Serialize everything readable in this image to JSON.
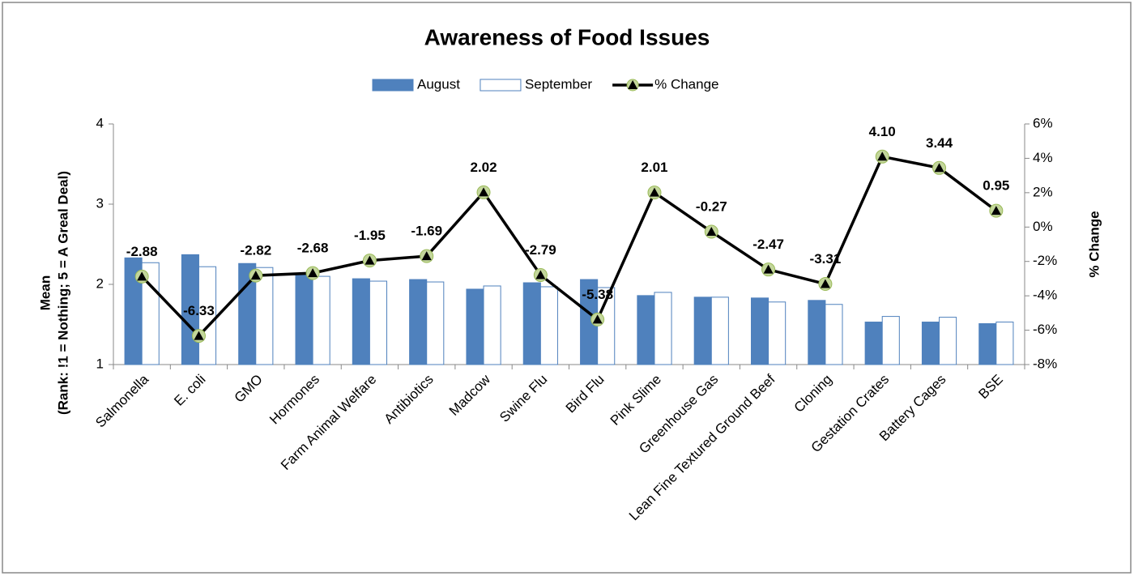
{
  "chart_data": {
    "type": "bar_line",
    "title": "Awareness of Food Issues",
    "y_label": [
      "Mean",
      "(Rank: !1  = Nothing; 5 = A Greal Deal)"
    ],
    "y2_label": "% Change",
    "categories": [
      "Salmonella",
      "E. coli",
      "GMO",
      "Hormones",
      "Farm Animal Welfare",
      "Antibiotics",
      "Madcow",
      "Swine Flu",
      "Bird Flu",
      "Pink Slime",
      "Greenhouse Gas",
      "Lean Fine Textured Ground Beef",
      "Cloning",
      "Gestation Crates",
      "Battery Cages",
      "BSE"
    ],
    "series": [
      {
        "name": "August",
        "type": "bar",
        "color": "#4f81bd",
        "values": [
          2.33,
          2.37,
          2.26,
          2.14,
          2.07,
          2.06,
          1.94,
          2.02,
          2.06,
          1.86,
          1.84,
          1.83,
          1.8,
          1.53,
          1.53,
          1.51
        ]
      },
      {
        "name": "September",
        "type": "bar",
        "color": "#ffffff",
        "edge_color": "#4f81bd",
        "values": [
          2.27,
          2.22,
          2.21,
          2.1,
          2.04,
          2.03,
          1.98,
          1.97,
          1.96,
          1.9,
          1.84,
          1.78,
          1.75,
          1.6,
          1.59,
          1.53
        ]
      },
      {
        "name": "% Change",
        "type": "line",
        "axis": "y2",
        "color": "#000000",
        "marker_color": "#c3d69b",
        "values": [
          -2.88,
          -6.33,
          -2.82,
          -2.68,
          -1.95,
          -1.69,
          2.02,
          -2.79,
          -5.38,
          2.01,
          -0.27,
          -2.47,
          -3.31,
          4.1,
          3.44,
          0.95
        ],
        "value_labels": [
          "-2.88",
          "-6.33",
          "-2.82",
          "-2.68",
          "-1.95",
          "-1.69",
          "2.02",
          "-2.79",
          "-5.38",
          "2.01",
          "-0.27",
          "-2.47",
          "-3.31",
          "4.10",
          "3.44",
          "0.95"
        ]
      }
    ],
    "ylim": [
      1,
      4
    ],
    "yticks": [
      1,
      2,
      3,
      4
    ],
    "y2lim": [
      -8,
      6
    ],
    "y2ticks": [
      {
        "value": -8,
        "label": "-8%"
      },
      {
        "value": -6,
        "label": "-6%"
      },
      {
        "value": -4,
        "label": "-4%"
      },
      {
        "value": -2,
        "label": "-2%"
      },
      {
        "value": 0,
        "label": "0%"
      },
      {
        "value": 2,
        "label": "2%"
      },
      {
        "value": 4,
        "label": "4%"
      },
      {
        "value": 6,
        "label": "6%"
      }
    ],
    "legend": "top"
  }
}
